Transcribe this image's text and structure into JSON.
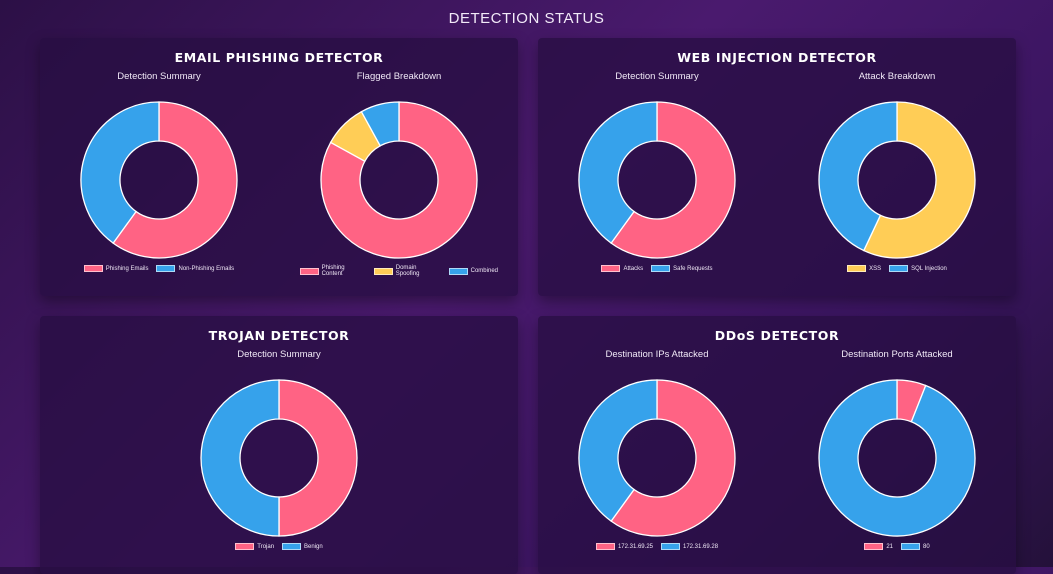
{
  "page_title": "DETECTION STATUS",
  "colors": {
    "red": "#ff6384",
    "blue": "#36a2eb",
    "yellow": "#ffcd56"
  },
  "cards": [
    {
      "title": "EMAIL PHISHING DETECTOR",
      "charts": [
        {
          "title": "Detection Summary",
          "chart_data": {
            "type": "doughnut",
            "labels": [
              "Phishing Emails",
              "Non-Phishing Emails"
            ],
            "values": [
              60,
              40
            ],
            "colors": [
              "#ff6384",
              "#36a2eb"
            ]
          }
        },
        {
          "title": "Flagged Breakdown",
          "chart_data": {
            "type": "doughnut",
            "labels": [
              "Phishing Content",
              "Domain Spoofing",
              "Combined"
            ],
            "values": [
              83,
              9,
              8
            ],
            "colors": [
              "#ff6384",
              "#ffcd56",
              "#36a2eb"
            ]
          }
        }
      ]
    },
    {
      "title": "WEB INJECTION DETECTOR",
      "charts": [
        {
          "title": "Detection Summary",
          "chart_data": {
            "type": "doughnut",
            "labels": [
              "Attacks",
              "Safe Requests"
            ],
            "values": [
              60,
              40
            ],
            "colors": [
              "#ff6384",
              "#36a2eb"
            ]
          }
        },
        {
          "title": "Attack Breakdown",
          "chart_data": {
            "type": "doughnut",
            "labels": [
              "XSS",
              "SQL Injection"
            ],
            "values": [
              57,
              43
            ],
            "colors": [
              "#ffcd56",
              "#36a2eb"
            ]
          }
        }
      ]
    },
    {
      "title": "TROJAN DETECTOR",
      "charts": [
        {
          "title": "Detection Summary",
          "chart_data": {
            "type": "doughnut",
            "labels": [
              "Trojan",
              "Benign"
            ],
            "values": [
              50,
              50
            ],
            "colors": [
              "#ff6384",
              "#36a2eb"
            ]
          }
        }
      ]
    },
    {
      "title": "DDoS DETECTOR",
      "charts": [
        {
          "title": "Destination IPs Attacked",
          "chart_data": {
            "type": "doughnut",
            "labels": [
              "172.31.69.25",
              "172.31.69.28"
            ],
            "values": [
              60,
              40
            ],
            "colors": [
              "#ff6384",
              "#36a2eb"
            ]
          }
        },
        {
          "title": "Destination Ports Attacked",
          "chart_data": {
            "type": "doughnut",
            "labels": [
              "21",
              "80"
            ],
            "values": [
              6,
              94
            ],
            "colors": [
              "#ff6384",
              "#36a2eb"
            ]
          }
        }
      ]
    }
  ]
}
